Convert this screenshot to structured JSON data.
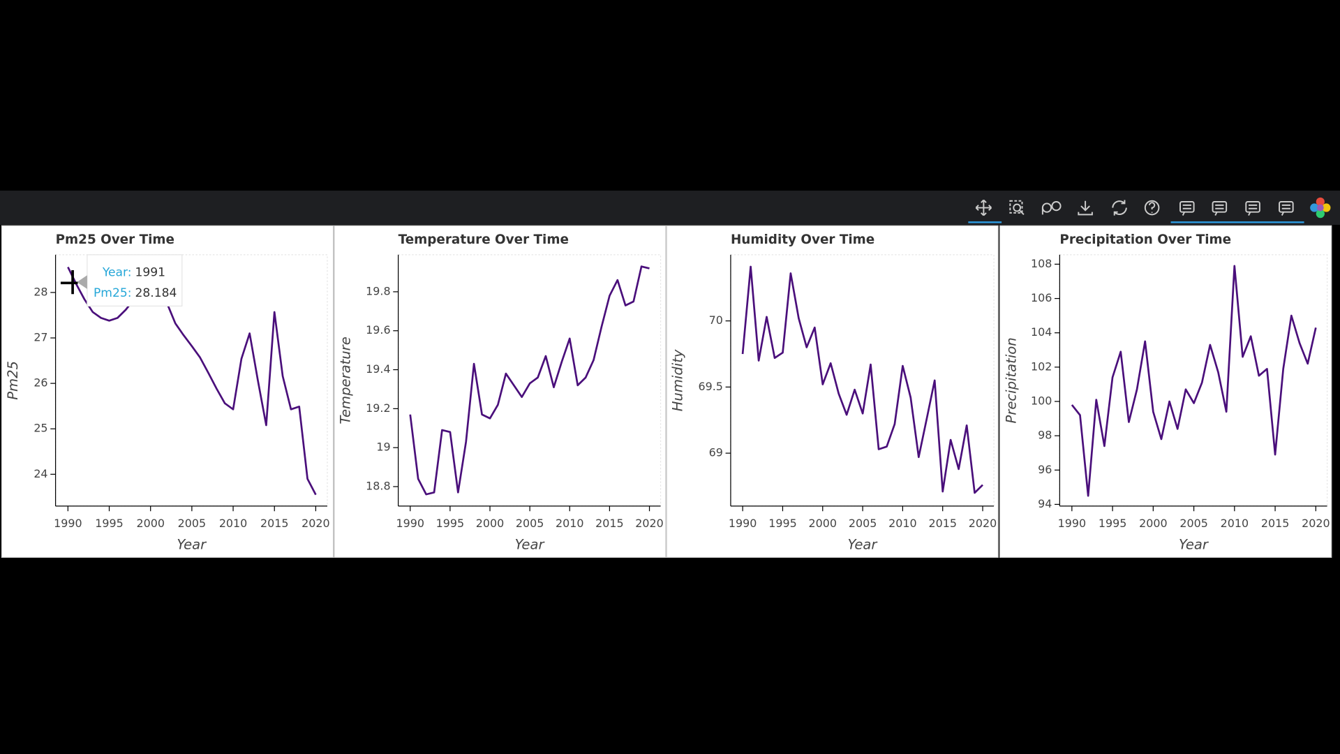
{
  "chart_data": [
    {
      "type": "line",
      "title": "Pm25 Over Time",
      "x_label": "Year",
      "y_label": "Pm25",
      "color": "#4a0f7b",
      "x": [
        1990,
        1991,
        1992,
        1993,
        1994,
        1995,
        1996,
        1997,
        1998,
        1999,
        2000,
        2001,
        2002,
        2003,
        2004,
        2005,
        2006,
        2007,
        2008,
        2009,
        2010,
        2011,
        2012,
        2013,
        2014,
        2015,
        2016,
        2017,
        2018,
        2019,
        2020
      ],
      "values": [
        28.56,
        28.184,
        27.85,
        27.57,
        27.44,
        27.38,
        27.44,
        27.62,
        27.85,
        28.08,
        28.2,
        28.13,
        27.76,
        27.32,
        27.06,
        26.82,
        26.57,
        26.23,
        25.88,
        25.56,
        25.43,
        26.54,
        27.1,
        26.06,
        25.08,
        27.57,
        26.16,
        25.43,
        25.49,
        23.9,
        23.55
      ],
      "xlim": [
        1988.5,
        2021.4
      ],
      "ylim": [
        23.3,
        28.83
      ],
      "xticks": [
        1990,
        1995,
        2000,
        2005,
        2010,
        2015,
        2020
      ],
      "yticks": [
        24,
        25,
        26,
        27,
        28
      ],
      "tooltip": {
        "labels": [
          "Year:",
          "Pm25:"
        ],
        "values": [
          1991,
          28.184
        ]
      }
    },
    {
      "type": "line",
      "title": "Temperature Over Time",
      "x_label": "Year",
      "y_label": "Temperature",
      "color": "#4a0f7b",
      "x": [
        1990,
        1991,
        1992,
        1993,
        1994,
        1995,
        1996,
        1997,
        1998,
        1999,
        2000,
        2001,
        2002,
        2003,
        2004,
        2005,
        2006,
        2007,
        2008,
        2009,
        2010,
        2011,
        2012,
        2013,
        2014,
        2015,
        2016,
        2017,
        2018,
        2019,
        2020
      ],
      "values": [
        19.17,
        18.84,
        18.76,
        18.77,
        19.09,
        19.08,
        18.77,
        19.03,
        19.43,
        19.17,
        19.15,
        19.22,
        19.38,
        19.32,
        19.26,
        19.33,
        19.36,
        19.47,
        19.31,
        19.44,
        19.56,
        19.32,
        19.36,
        19.45,
        19.62,
        19.78,
        19.86,
        19.73,
        19.75,
        19.93,
        19.92
      ],
      "xlim": [
        1988.5,
        2021.4
      ],
      "ylim": [
        18.7,
        19.99
      ],
      "xticks": [
        1990,
        1995,
        2000,
        2005,
        2010,
        2015,
        2020
      ],
      "yticks": [
        18.8,
        19,
        19.2,
        19.4,
        19.6,
        19.8
      ]
    },
    {
      "type": "line",
      "title": "Humidity Over Time",
      "x_label": "Year",
      "y_label": "Humidity",
      "color": "#4a0f7b",
      "x": [
        1990,
        1991,
        1992,
        1993,
        1994,
        1995,
        1996,
        1997,
        1998,
        1999,
        2000,
        2001,
        2002,
        2003,
        2004,
        2005,
        2006,
        2007,
        2008,
        2009,
        2010,
        2011,
        2012,
        2013,
        2014,
        2015,
        2016,
        2017,
        2018,
        2019,
        2020
      ],
      "values": [
        69.75,
        70.41,
        69.7,
        70.03,
        69.72,
        69.76,
        70.36,
        70.02,
        69.8,
        69.95,
        69.52,
        69.68,
        69.45,
        69.29,
        69.48,
        69.3,
        69.67,
        69.03,
        69.05,
        69.22,
        69.66,
        69.42,
        68.97,
        69.26,
        69.55,
        68.71,
        69.1,
        68.88,
        69.21,
        68.7,
        68.76
      ],
      "xlim": [
        1988.5,
        2021.4
      ],
      "ylim": [
        68.6,
        70.5
      ],
      "xticks": [
        1990,
        1995,
        2000,
        2005,
        2010,
        2015,
        2020
      ],
      "yticks": [
        69,
        69.5,
        70
      ]
    },
    {
      "type": "line",
      "title": "Precipitation Over Time",
      "x_label": "Year",
      "y_label": "Precipitation",
      "color": "#4a0f7b",
      "x": [
        1990,
        1991,
        1992,
        1993,
        1994,
        1995,
        1996,
        1997,
        1998,
        1999,
        2000,
        2001,
        2002,
        2003,
        2004,
        2005,
        2006,
        2007,
        2008,
        2009,
        2010,
        2011,
        2012,
        2013,
        2014,
        2015,
        2016,
        2017,
        2018,
        2019,
        2020
      ],
      "values": [
        99.8,
        99.2,
        94.5,
        100.1,
        97.4,
        101.4,
        102.9,
        98.8,
        100.7,
        103.5,
        99.4,
        97.8,
        100.0,
        98.4,
        100.7,
        99.9,
        101.1,
        103.3,
        101.7,
        99.4,
        107.9,
        102.6,
        103.8,
        101.5,
        101.9,
        96.9,
        101.9,
        105.0,
        103.4,
        102.2,
        104.3
      ],
      "xlim": [
        1988.5,
        2021.4
      ],
      "ylim": [
        93.9,
        108.55
      ],
      "xticks": [
        1990,
        1995,
        2000,
        2005,
        2010,
        2015,
        2020
      ],
      "yticks": [
        94,
        96,
        98,
        100,
        102,
        104,
        106,
        108
      ]
    }
  ]
}
